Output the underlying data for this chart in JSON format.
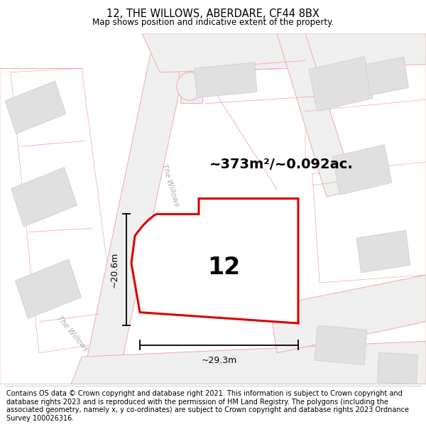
{
  "title": "12, THE WILLOWS, ABERDARE, CF44 8BX",
  "subtitle": "Map shows position and indicative extent of the property.",
  "footer": "Contains OS data © Crown copyright and database right 2021. This information is subject to Crown copyright and database rights 2023 and is reproduced with the permission of HM Land Registry. The polygons (including the associated geometry, namely x, y co-ordinates) are subject to Crown copyright and database rights 2023 Ordnance Survey 100026316.",
  "area_label": "~373m²/~0.092ac.",
  "number_label": "12",
  "dim_width": "~29.3m",
  "dim_height": "~20.6m",
  "street_label_1": "The Willows",
  "street_label_2": "The Willows",
  "map_bg": "#f7f5f5",
  "plot_edge_color": "#dd0000",
  "road_line_color": "#f0aaaa",
  "title_fontsize": 10.5,
  "subtitle_fontsize": 8.5,
  "footer_fontsize": 7.0,
  "road_fill": "#efefef",
  "building_fill": "#e0e0e0",
  "building_edge": "#cccccc"
}
